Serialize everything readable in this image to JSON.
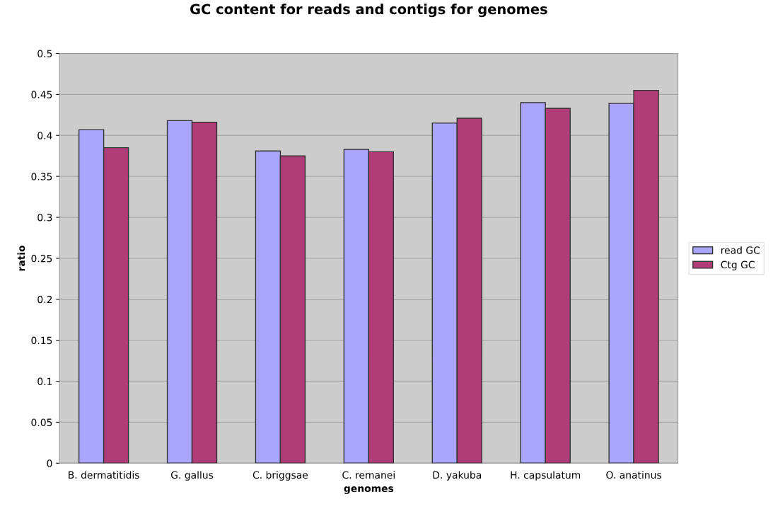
{
  "chart_data": {
    "type": "bar",
    "title": "GC content for reads and contigs for genomes",
    "xlabel": "genomes",
    "ylabel": "ratio",
    "categories": [
      "B. dermatitidis",
      "G. gallus",
      "C. briggsae",
      "C. remanei",
      "D. yakuba",
      "H. capsulatum",
      "O. anatinus"
    ],
    "series": [
      {
        "name": "read GC",
        "color": "#aaa6ff",
        "values": [
          0.407,
          0.418,
          0.381,
          0.383,
          0.415,
          0.44,
          0.439
        ]
      },
      {
        "name": "Ctg GC",
        "color": "#b03c78",
        "values": [
          0.385,
          0.416,
          0.375,
          0.38,
          0.421,
          0.433,
          0.455
        ]
      }
    ],
    "ylim": [
      0,
      0.5
    ],
    "yticks": [
      0,
      0.05,
      0.1,
      0.15,
      0.2,
      0.25,
      0.3,
      0.35,
      0.4,
      0.45,
      0.5
    ],
    "grid": "y",
    "legend": "right"
  }
}
